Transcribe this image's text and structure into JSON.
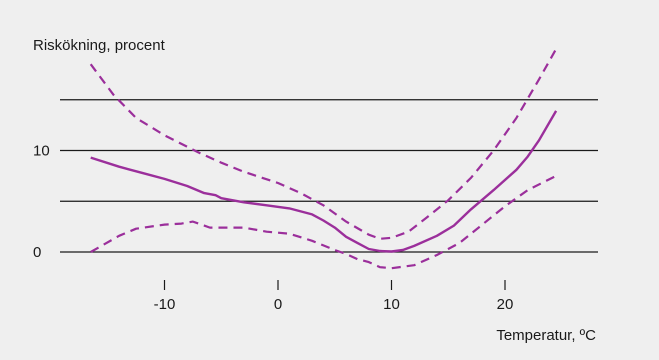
{
  "chart_data": {
    "type": "line",
    "title": "",
    "ylabel": "Riskökning, procent",
    "xlabel": "Temperatur, ºC",
    "xlim": [
      -18,
      26
    ],
    "ylim": [
      -3,
      21
    ],
    "x_ticks": [
      -10,
      0,
      10,
      20
    ],
    "y_ticks": [
      0,
      10
    ],
    "y_gridlines": [
      0,
      5,
      10,
      15
    ],
    "grid": true,
    "legend": "none",
    "colors": {
      "series": "#9b2f9b",
      "grid": "#1a1a1a",
      "background": "#efefef"
    },
    "series": [
      {
        "style": "solid",
        "points": [
          [
            -16.5,
            9.3
          ],
          [
            -14,
            8.4
          ],
          [
            -12,
            7.8
          ],
          [
            -10,
            7.2
          ],
          [
            -8,
            6.5
          ],
          [
            -6.5,
            5.8
          ],
          [
            -5.5,
            5.6
          ],
          [
            -5,
            5.3
          ],
          [
            -3,
            4.9
          ],
          [
            -1,
            4.6
          ],
          [
            1,
            4.3
          ],
          [
            3,
            3.7
          ],
          [
            4,
            3.1
          ],
          [
            5,
            2.4
          ],
          [
            6,
            1.5
          ],
          [
            7,
            0.9
          ],
          [
            8,
            0.3
          ],
          [
            9,
            0.1
          ],
          [
            10,
            0.05
          ],
          [
            11,
            0.2
          ],
          [
            12,
            0.6
          ],
          [
            14,
            1.6
          ],
          [
            15.5,
            2.6
          ],
          [
            17,
            4.2
          ],
          [
            19,
            6.1
          ],
          [
            21,
            8.1
          ],
          [
            22,
            9.4
          ],
          [
            23,
            11
          ],
          [
            24.5,
            13.9
          ]
        ]
      },
      {
        "style": "dashed",
        "points": [
          [
            -16.5,
            18.5
          ],
          [
            -14.5,
            15.5
          ],
          [
            -12.5,
            13.2
          ],
          [
            -10,
            11.5
          ],
          [
            -7,
            9.8
          ],
          [
            -5,
            8.8
          ],
          [
            -3,
            7.9
          ],
          [
            0,
            6.8
          ],
          [
            2,
            5.8
          ],
          [
            4,
            4.6
          ],
          [
            6,
            3.0
          ],
          [
            8,
            1.7
          ],
          [
            9,
            1.3
          ],
          [
            10,
            1.4
          ],
          [
            11.5,
            2.0
          ],
          [
            13,
            3.3
          ],
          [
            15,
            5.1
          ],
          [
            17,
            7.3
          ],
          [
            19,
            10.0
          ],
          [
            21,
            13.2
          ],
          [
            23,
            17.0
          ],
          [
            24.5,
            20.0
          ]
        ]
      },
      {
        "style": "dashed",
        "points": [
          [
            -16.5,
            0.0
          ],
          [
            -14,
            1.6
          ],
          [
            -12.5,
            2.3
          ],
          [
            -10,
            2.7
          ],
          [
            -8.5,
            2.8
          ],
          [
            -7.5,
            3.0
          ],
          [
            -6,
            2.4
          ],
          [
            -3,
            2.4
          ],
          [
            -1,
            2.0
          ],
          [
            1,
            1.8
          ],
          [
            3,
            1.1
          ],
          [
            5,
            0.2
          ],
          [
            6,
            -0.2
          ],
          [
            7,
            -0.7
          ],
          [
            8,
            -1.0
          ],
          [
            9,
            -1.5
          ],
          [
            10,
            -1.6
          ],
          [
            12,
            -1.3
          ],
          [
            14,
            -0.3
          ],
          [
            16,
            0.9
          ],
          [
            18,
            2.7
          ],
          [
            20,
            4.5
          ],
          [
            22,
            6.1
          ],
          [
            24.5,
            7.5
          ]
        ]
      }
    ]
  }
}
